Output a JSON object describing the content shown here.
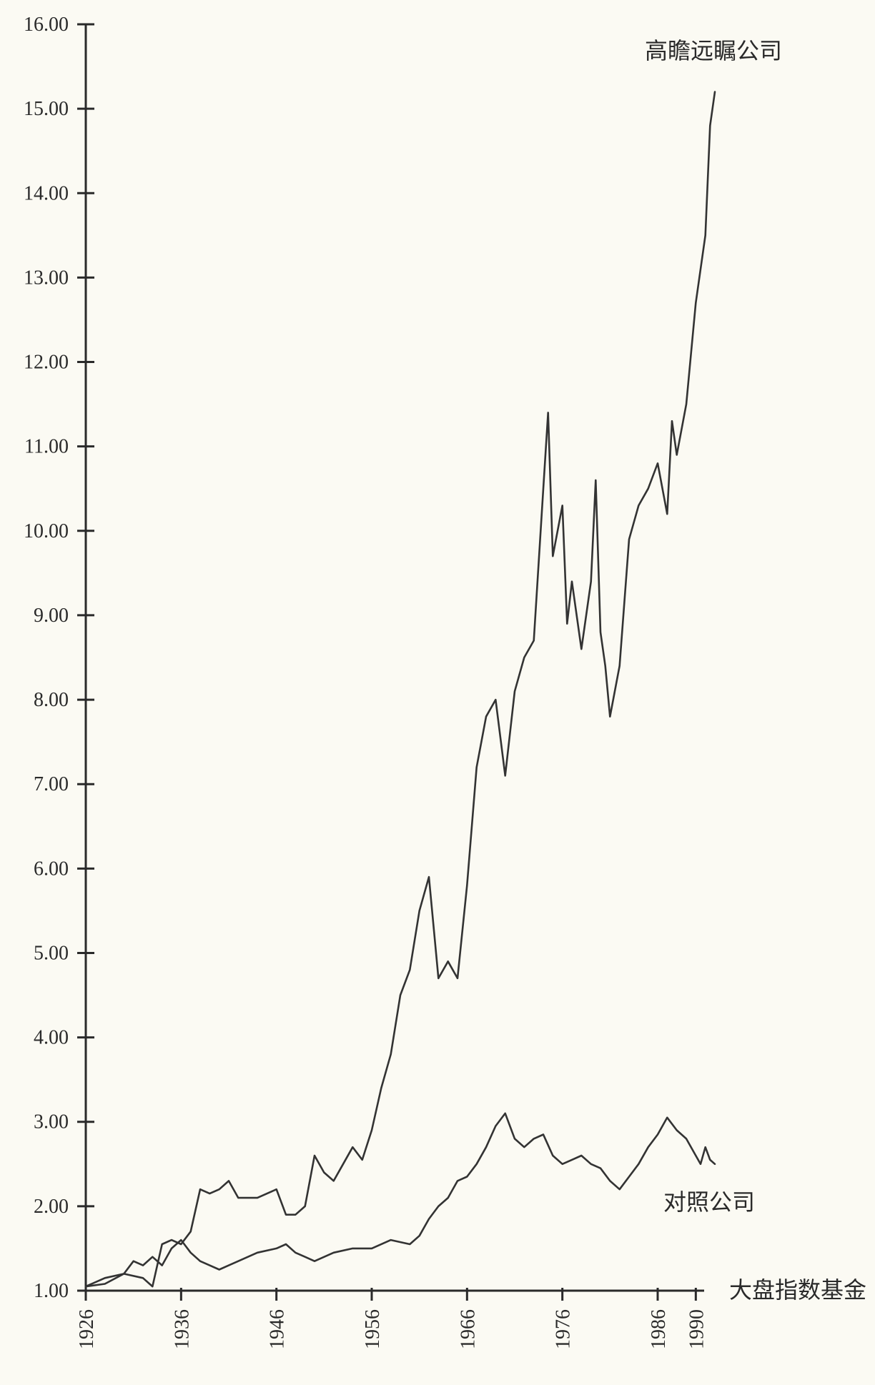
{
  "chart_data": {
    "type": "line",
    "title": "",
    "xlabel": "",
    "ylabel": "",
    "ylim": [
      1.0,
      16.0
    ],
    "xlim": [
      1926,
      1992
    ],
    "grid": false,
    "legend": "inline labels at series ends",
    "y_ticks": [
      "1.00",
      "2.00",
      "3.00",
      "4.00",
      "5.00",
      "6.00",
      "7.00",
      "8.00",
      "9.00",
      "10.00",
      "11.00",
      "12.00",
      "13.00",
      "14.00",
      "15.00",
      "16.00"
    ],
    "x_ticks": [
      "1926",
      "1936",
      "1946",
      "1956",
      "1966",
      "1976",
      "1986",
      "1990"
    ],
    "line_color": "#333333",
    "series": [
      {
        "name": "高瞻远瞩公司",
        "x": [
          1926,
          1928,
          1930,
          1932,
          1933,
          1934,
          1935,
          1936,
          1937,
          1938,
          1939,
          1940,
          1941,
          1942,
          1944,
          1946,
          1947,
          1948,
          1949,
          1950,
          1951,
          1952,
          1953,
          1954,
          1955,
          1956,
          1957,
          1958,
          1959,
          1960,
          1961,
          1962,
          1963,
          1964,
          1965,
          1966,
          1966.5,
          1967,
          1968,
          1969,
          1970,
          1971,
          1972,
          1973,
          1974,
          1974.5,
          1975,
          1976,
          1976.5,
          1977,
          1978,
          1979,
          1979.5,
          1980,
          1980.5,
          1981,
          1982,
          1983,
          1984,
          1985,
          1986,
          1987,
          1987.5,
          1988,
          1989,
          1990,
          1991,
          1991.5,
          1992
        ],
        "values": [
          1.05,
          1.08,
          1.2,
          1.15,
          1.05,
          1.55,
          1.6,
          1.55,
          1.7,
          2.2,
          2.15,
          2.2,
          2.3,
          2.1,
          2.1,
          2.2,
          1.9,
          1.9,
          2.0,
          2.6,
          2.4,
          2.3,
          2.5,
          2.7,
          2.55,
          2.9,
          3.4,
          3.8,
          4.5,
          4.8,
          5.5,
          5.9,
          4.7,
          4.9,
          4.7,
          5.8,
          6.5,
          7.2,
          7.8,
          8.0,
          7.1,
          8.1,
          8.5,
          8.7,
          10.5,
          11.4,
          9.7,
          10.3,
          8.9,
          9.4,
          8.6,
          9.4,
          10.6,
          8.8,
          8.4,
          7.8,
          8.4,
          9.9,
          10.3,
          10.5,
          10.8,
          10.2,
          11.3,
          10.9,
          11.5,
          12.7,
          13.5,
          14.8,
          15.2
        ]
      },
      {
        "name": "对照公司",
        "x": [
          1926,
          1928,
          1930,
          1931,
          1932,
          1933,
          1934,
          1935,
          1936,
          1937,
          1938,
          1939,
          1940,
          1941,
          1942,
          1944,
          1946,
          1947,
          1948,
          1949,
          1950,
          1952,
          1954,
          1956,
          1958,
          1960,
          1961,
          1962,
          1963,
          1964,
          1965,
          1966,
          1967,
          1968,
          1969,
          1970,
          1971,
          1972,
          1973,
          1974,
          1975,
          1976,
          1977,
          1978,
          1979,
          1980,
          1981,
          1982,
          1983,
          1984,
          1985,
          1986,
          1987,
          1988,
          1989,
          1990,
          1990.5,
          1991,
          1991.5,
          1992
        ],
        "values": [
          1.05,
          1.15,
          1.2,
          1.35,
          1.3,
          1.4,
          1.3,
          1.5,
          1.6,
          1.45,
          1.35,
          1.3,
          1.25,
          1.3,
          1.35,
          1.45,
          1.5,
          1.55,
          1.45,
          1.4,
          1.35,
          1.45,
          1.5,
          1.5,
          1.6,
          1.55,
          1.65,
          1.85,
          2.0,
          2.1,
          2.3,
          2.35,
          2.5,
          2.7,
          2.95,
          3.1,
          2.8,
          2.7,
          2.8,
          2.85,
          2.6,
          2.5,
          2.55,
          2.6,
          2.5,
          2.45,
          2.3,
          2.2,
          2.35,
          2.5,
          2.7,
          2.85,
          3.05,
          2.9,
          2.8,
          2.6,
          2.5,
          2.7,
          2.55,
          2.5
        ]
      }
    ],
    "labels": {
      "visionary": "高瞻远瞩公司",
      "comparison": "对照公司",
      "baseline": "大盘指数基金"
    }
  }
}
